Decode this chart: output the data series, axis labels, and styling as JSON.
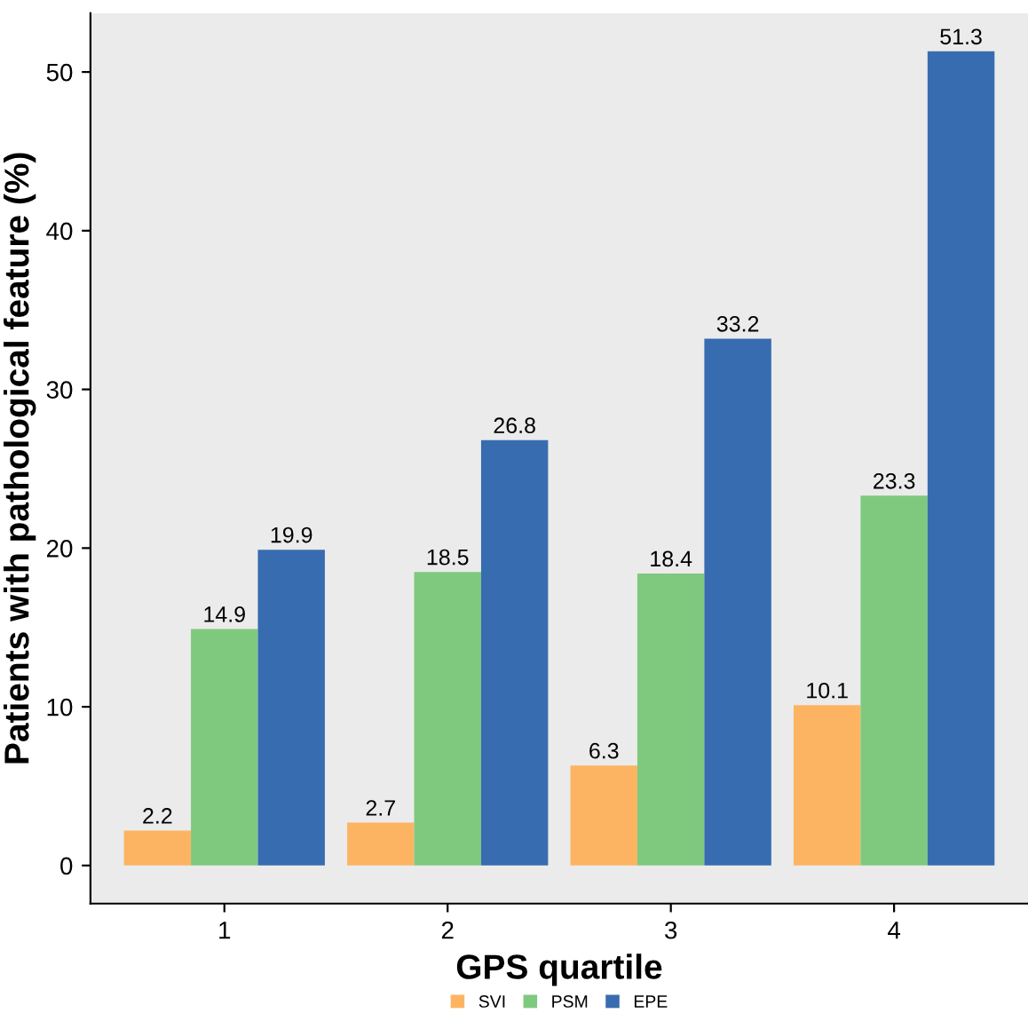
{
  "chart_data": {
    "type": "bar",
    "xlabel": "GPS quartile",
    "ylabel": "Patients with pathological feature (%)",
    "categories": [
      "1",
      "2",
      "3",
      "4"
    ],
    "series": [
      {
        "name": "SVI",
        "color": "#fdb462",
        "values": [
          2.2,
          2.7,
          6.3,
          10.1
        ]
      },
      {
        "name": "PSM",
        "color": "#7fc97f",
        "values": [
          14.9,
          18.5,
          18.4,
          23.3
        ]
      },
      {
        "name": "EPE",
        "color": "#386cb0",
        "values": [
          19.9,
          26.8,
          33.2,
          51.3
        ]
      }
    ],
    "ylim": [
      -2.4,
      53.7
    ],
    "yticks": [
      0,
      10,
      20,
      30,
      40,
      50
    ],
    "data_labels": true,
    "legend": "bottom",
    "grid": false
  }
}
